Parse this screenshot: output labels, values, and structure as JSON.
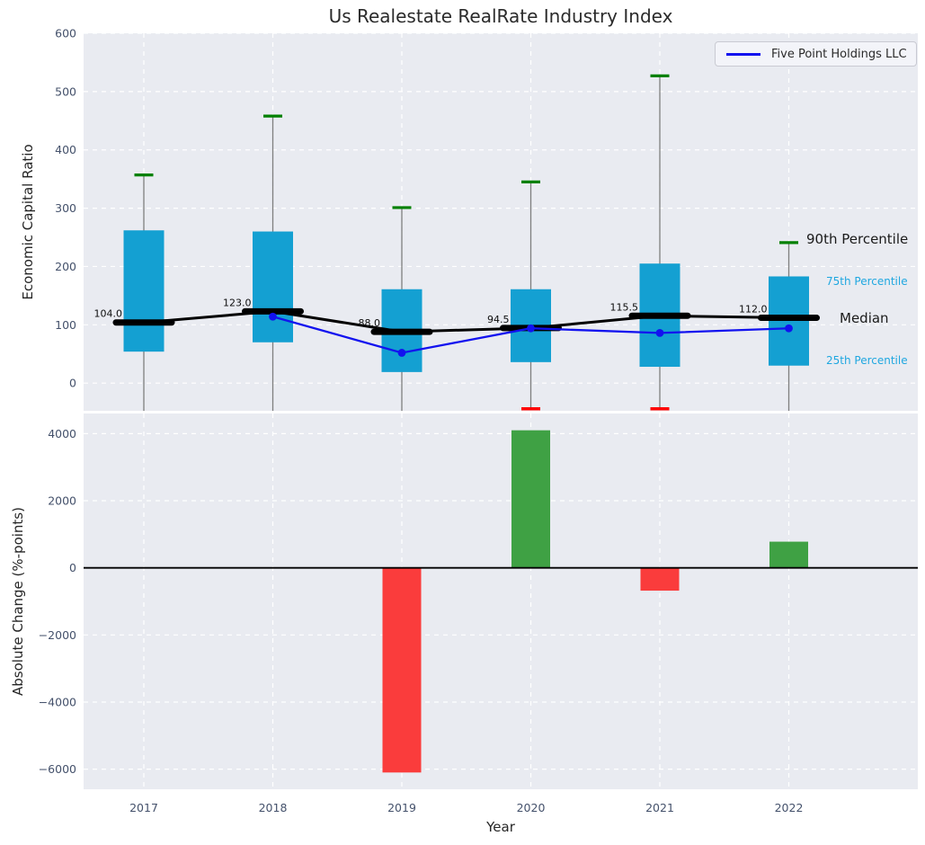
{
  "figure": {
    "title": "Us Realestate RealRate Industry Index",
    "background_color": "#ffffff",
    "plot_background_color": "#e9ebf1",
    "grid_color": "#ffffff",
    "tick_label_color": "#44516b"
  },
  "legend": {
    "label": "Five Point Holdings LLC",
    "position": "upper right",
    "line_color": "#1212ef"
  },
  "annotations": {
    "p90": "90th Percentile",
    "p75": "75th Percentile",
    "median": "Median",
    "p25": "25th Percentile",
    "black_color": "#1b1b1b",
    "blue_color": "#1fa7e0"
  },
  "chart_data": [
    {
      "type": "boxplot+line",
      "title": "Us Realestate RealRate Industry Index",
      "ylabel": "Economic Capital Ratio",
      "categories": [
        "2017",
        "2018",
        "2019",
        "2020",
        "2021",
        "2022"
      ],
      "ylim": [
        -47.5,
        600
      ],
      "yticks": [
        600,
        500,
        400,
        300,
        200,
        100,
        0
      ],
      "yticklabels": [
        "600",
        "500",
        "400",
        "300",
        "200",
        "100",
        "0"
      ],
      "grid": true,
      "legend_position": "upper right",
      "boxes": {
        "fill_color": "#14a0d2",
        "whisker_color": "#7e7e7e",
        "cap_top_color": "#008000",
        "cap_bottom_color": "#ff0000",
        "median_color": "#000000",
        "p90": [
          357,
          458,
          301,
          345,
          527,
          241
        ],
        "q3": [
          262,
          260,
          161,
          161,
          205,
          183
        ],
        "median": [
          104.0,
          123.0,
          88.0,
          94.5,
          115.5,
          112.0
        ],
        "q1": [
          54,
          70,
          19,
          36,
          28,
          30
        ],
        "p10": [
          null,
          null,
          null,
          -44,
          -44,
          null
        ],
        "median_labels": [
          "104.0",
          "123.0",
          "88.0",
          "94.5",
          "115.5",
          "112.0"
        ]
      },
      "series": [
        {
          "name": "Five Point Holdings LLC",
          "color": "#1212ef",
          "marker": "circle",
          "values": [
            null,
            114,
            52,
            94,
            86,
            94
          ]
        }
      ]
    },
    {
      "type": "bar",
      "ylabel": "Absolute Change (%-points)",
      "xlabel": "Year",
      "categories": [
        "2017",
        "2018",
        "2019",
        "2020",
        "2021",
        "2022"
      ],
      "values": [
        null,
        null,
        -6100,
        4100,
        -680,
        780
      ],
      "ylim": [
        -6600,
        4600
      ],
      "yticks": [
        4000,
        2000,
        0,
        -2000,
        -4000,
        -6000
      ],
      "yticklabels": [
        "4000",
        "2000",
        "0",
        "−2000",
        "−4000",
        "−6000"
      ],
      "grid": true,
      "zero_line": true,
      "positive_color": "#3fa144",
      "negative_color": "#fa3c3c"
    }
  ]
}
